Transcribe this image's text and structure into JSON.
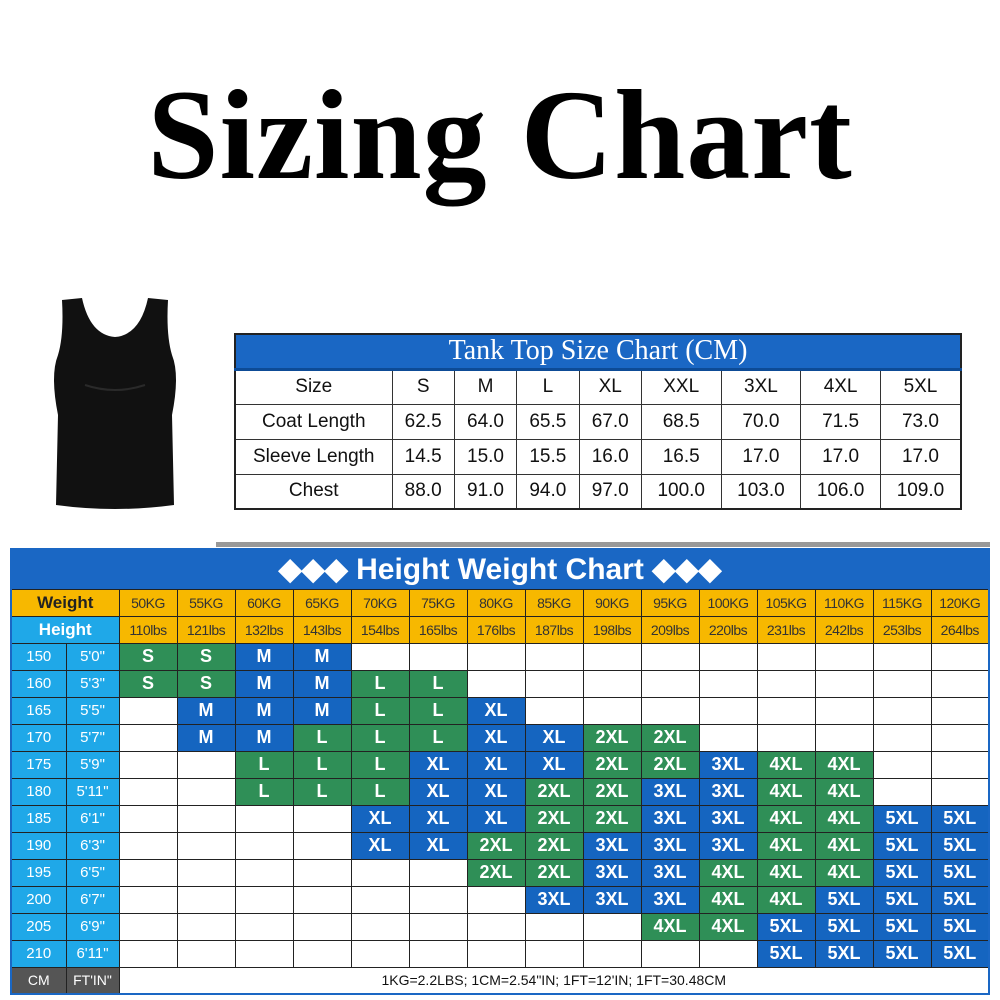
{
  "title": "Sizing Chart",
  "colors": {
    "header_blue": "#1a67c4",
    "weight_yellow": "#f7b800",
    "height_cyan": "#1fa8e8",
    "size_green": "#2f8f57",
    "size_blue": "#1565c0"
  },
  "tank_chart": {
    "title": "Tank Top Size Chart (CM)",
    "headers": [
      "Size",
      "S",
      "M",
      "L",
      "XL",
      "XXL",
      "3XL",
      "4XL",
      "5XL"
    ],
    "rows": [
      [
        "Coat Length",
        "62.5",
        "64.0",
        "65.5",
        "67.0",
        "68.5",
        "70.0",
        "71.5",
        "73.0"
      ],
      [
        "Sleeve Length",
        "14.5",
        "15.0",
        "15.5",
        "16.0",
        "16.5",
        "17.0",
        "17.0",
        "17.0"
      ],
      [
        "Chest",
        "88.0",
        "91.0",
        "94.0",
        "97.0",
        "100.0",
        "103.0",
        "106.0",
        "109.0"
      ]
    ]
  },
  "hw_chart": {
    "title": "◆◆◆ Height Weight Chart ◆◆◆",
    "weight_label": "Weight",
    "height_label": "Height",
    "kg": [
      "50KG",
      "55KG",
      "60KG",
      "65KG",
      "70KG",
      "75KG",
      "80KG",
      "85KG",
      "90KG",
      "95KG",
      "100KG",
      "105KG",
      "110KG",
      "115KG",
      "120KG"
    ],
    "lbs": [
      "110lbs",
      "121lbs",
      "132lbs",
      "143lbs",
      "154lbs",
      "165lbs",
      "176lbs",
      "187lbs",
      "198lbs",
      "209lbs",
      "220lbs",
      "231lbs",
      "242lbs",
      "253lbs",
      "264lbs"
    ],
    "rows": [
      {
        "cm": "150",
        "ft": "5'0\"",
        "sizes": [
          "S",
          "S",
          "M",
          "M",
          "",
          "",
          "",
          "",
          "",
          "",
          "",
          "",
          "",
          "",
          ""
        ]
      },
      {
        "cm": "160",
        "ft": "5'3\"",
        "sizes": [
          "S",
          "S",
          "M",
          "M",
          "L",
          "L",
          "",
          "",
          "",
          "",
          "",
          "",
          "",
          "",
          ""
        ]
      },
      {
        "cm": "165",
        "ft": "5'5\"",
        "sizes": [
          "",
          "M",
          "M",
          "M",
          "L",
          "L",
          "XL",
          "",
          "",
          "",
          "",
          "",
          "",
          "",
          ""
        ]
      },
      {
        "cm": "170",
        "ft": "5'7\"",
        "sizes": [
          "",
          "M",
          "M",
          "L",
          "L",
          "L",
          "XL",
          "XL",
          "2XL",
          "2XL",
          "",
          "",
          "",
          "",
          ""
        ]
      },
      {
        "cm": "175",
        "ft": "5'9\"",
        "sizes": [
          "",
          "",
          "L",
          "L",
          "L",
          "XL",
          "XL",
          "XL",
          "2XL",
          "2XL",
          "3XL",
          "4XL",
          "4XL",
          "",
          ""
        ]
      },
      {
        "cm": "180",
        "ft": "5'11\"",
        "sizes": [
          "",
          "",
          "L",
          "L",
          "L",
          "XL",
          "XL",
          "2XL",
          "2XL",
          "3XL",
          "3XL",
          "4XL",
          "4XL",
          "",
          ""
        ]
      },
      {
        "cm": "185",
        "ft": "6'1\"",
        "sizes": [
          "",
          "",
          "",
          "",
          "XL",
          "XL",
          "XL",
          "2XL",
          "2XL",
          "3XL",
          "3XL",
          "4XL",
          "4XL",
          "5XL",
          "5XL"
        ]
      },
      {
        "cm": "190",
        "ft": "6'3\"",
        "sizes": [
          "",
          "",
          "",
          "",
          "XL",
          "XL",
          "2XL",
          "2XL",
          "3XL",
          "3XL",
          "3XL",
          "4XL",
          "4XL",
          "5XL",
          "5XL"
        ]
      },
      {
        "cm": "195",
        "ft": "6'5\"",
        "sizes": [
          "",
          "",
          "",
          "",
          "",
          "",
          "2XL",
          "2XL",
          "3XL",
          "3XL",
          "4XL",
          "4XL",
          "4XL",
          "5XL",
          "5XL"
        ]
      },
      {
        "cm": "200",
        "ft": "6'7\"",
        "sizes": [
          "",
          "",
          "",
          "",
          "",
          "",
          "",
          "3XL",
          "3XL",
          "3XL",
          "4XL",
          "4XL",
          "5XL",
          "5XL",
          "5XL"
        ]
      },
      {
        "cm": "205",
        "ft": "6'9\"",
        "sizes": [
          "",
          "",
          "",
          "",
          "",
          "",
          "",
          "",
          "",
          "4XL",
          "4XL",
          "5XL",
          "5XL",
          "5XL",
          "5XL"
        ]
      },
      {
        "cm": "210",
        "ft": "6'11\"",
        "sizes": [
          "",
          "",
          "",
          "",
          "",
          "",
          "",
          "",
          "",
          "",
          "",
          "5XL",
          "5XL",
          "5XL",
          "5XL"
        ]
      }
    ],
    "footer": {
      "cm": "CM",
      "ft": "FT'IN\"",
      "note": "1KG=2.2LBS;  1CM=2.54\"IN;  1FT=12'IN;  1FT=30.48CM"
    }
  }
}
